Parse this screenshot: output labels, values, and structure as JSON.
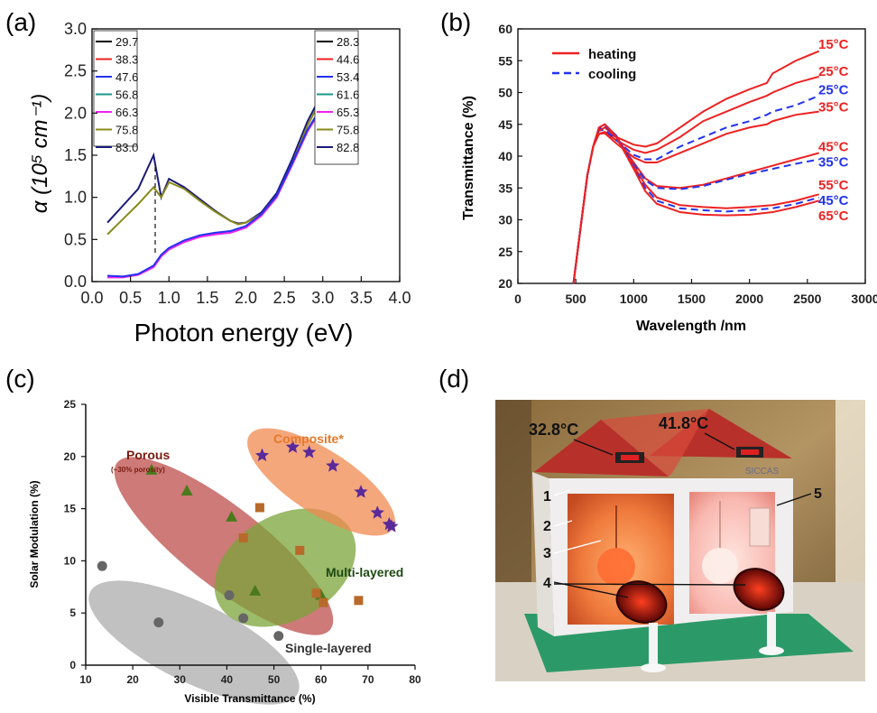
{
  "panels": [
    {
      "id": "a",
      "label": "(a)"
    },
    {
      "id": "b",
      "label": "(b)"
    },
    {
      "id": "c",
      "label": "(c)"
    },
    {
      "id": "d",
      "label": "(d)"
    }
  ],
  "chart_data": [
    {
      "panel": "(a)",
      "type": "line",
      "xlabel": "Photon energy (eV)",
      "ylabel": "α (10⁵ cm⁻¹)",
      "xlim": [
        0.0,
        4.0
      ],
      "ylim": [
        0.0,
        3.0
      ],
      "xticks": [
        "0.0",
        "0.5",
        "1.0",
        "1.5",
        "2.0",
        "2.5",
        "3.0",
        "3.5",
        "4.0"
      ],
      "yticks": [
        "0.0",
        "0.5",
        "1.0",
        "1.5",
        "2.0",
        "2.5",
        "3.0"
      ],
      "legend_left": {
        "placement": "top-left",
        "entries": [
          {
            "label": "29.7",
            "color": "#000000"
          },
          {
            "label": "38.3",
            "color": "#ee2222"
          },
          {
            "label": "47.6",
            "color": "#2233ee"
          },
          {
            "label": "56.8",
            "color": "#1a9a8a"
          },
          {
            "label": "66.3",
            "color": "#ee22ee"
          },
          {
            "label": "75.8",
            "color": "#8a8a1a"
          },
          {
            "label": "83.0",
            "color": "#1a1a7a"
          }
        ]
      },
      "legend_right": {
        "placement": "top-right",
        "entries": [
          {
            "label": "28.3",
            "color": "#000000"
          },
          {
            "label": "44.6",
            "color": "#ee2222"
          },
          {
            "label": "53.4",
            "color": "#2233ee"
          },
          {
            "label": "61.6",
            "color": "#1a9a8a"
          },
          {
            "label": "65.3",
            "color": "#ee22ee"
          },
          {
            "label": "75.8",
            "color": "#8a8a1a"
          },
          {
            "label": "82.8",
            "color": "#1a1a7a"
          }
        ]
      },
      "series": [
        {
          "color": "#1a1a7a",
          "x": [
            0.2,
            0.4,
            0.6,
            0.8,
            0.9,
            1.0,
            1.2,
            1.4,
            1.6,
            1.8,
            1.9,
            2.0,
            2.2,
            2.4,
            2.6,
            2.8,
            3.0,
            3.1
          ],
          "y": [
            0.7,
            0.9,
            1.1,
            1.5,
            1.0,
            1.22,
            1.12,
            0.98,
            0.84,
            0.72,
            0.69,
            0.7,
            0.82,
            1.05,
            1.45,
            1.9,
            2.25,
            2.35
          ]
        },
        {
          "color": "#8a8a1a",
          "x": [
            0.2,
            0.4,
            0.6,
            0.8,
            0.9,
            1.0,
            1.2,
            1.4,
            1.6,
            1.8,
            1.9,
            2.0,
            2.2,
            2.4,
            2.6,
            2.8,
            3.0,
            3.1
          ],
          "y": [
            0.56,
            0.74,
            0.92,
            1.12,
            1.0,
            1.18,
            1.1,
            0.96,
            0.83,
            0.72,
            0.68,
            0.7,
            0.8,
            1.02,
            1.4,
            1.85,
            2.2,
            2.3
          ]
        },
        {
          "color": "#ee22ee",
          "x": [
            0.2,
            0.4,
            0.6,
            0.8,
            0.9,
            1.0,
            1.2,
            1.4,
            1.6,
            1.8,
            2.0,
            2.2,
            2.4,
            2.6,
            2.8,
            3.0,
            3.1
          ],
          "y": [
            0.05,
            0.05,
            0.08,
            0.17,
            0.3,
            0.38,
            0.47,
            0.53,
            0.56,
            0.58,
            0.64,
            0.78,
            1.0,
            1.38,
            1.78,
            2.08,
            2.15
          ]
        },
        {
          "color": "#2233ee",
          "x": [
            0.2,
            0.4,
            0.6,
            0.8,
            0.9,
            1.0,
            1.2,
            1.4,
            1.6,
            1.8,
            2.0,
            2.2,
            2.4,
            2.6,
            2.8,
            3.0,
            3.1
          ],
          "y": [
            0.07,
            0.06,
            0.09,
            0.19,
            0.32,
            0.4,
            0.49,
            0.55,
            0.58,
            0.6,
            0.66,
            0.8,
            1.02,
            1.4,
            1.8,
            2.1,
            2.18
          ]
        }
      ]
    },
    {
      "panel": "(b)",
      "type": "line",
      "xlabel": "Wavelength /nm",
      "ylabel": "Transmittance (%)",
      "xlim": [
        0,
        3000
      ],
      "ylim": [
        20,
        60
      ],
      "xticks": [
        "0",
        "500",
        "1000",
        "1500",
        "2000",
        "2500",
        "3000"
      ],
      "yticks": [
        "20",
        "25",
        "30",
        "35",
        "40",
        "45",
        "50",
        "55",
        "60"
      ],
      "legend": {
        "placement": "top-left",
        "entries": [
          {
            "label": "heating",
            "color": "#ee2222",
            "style": "solid"
          },
          {
            "label": "cooling",
            "color": "#2233ee",
            "style": "dashed"
          }
        ]
      },
      "annotations": [
        {
          "text": "15°C",
          "color": "#ee2222",
          "y": 57.7
        },
        {
          "text": "25°C",
          "color": "#ee2222",
          "y": 53.5
        },
        {
          "text": "25°C",
          "color": "#2233ee",
          "y": 50.6
        },
        {
          "text": "35°C",
          "color": "#ee2222",
          "y": 47.9
        },
        {
          "text": "45°C",
          "color": "#ee2222",
          "y": 41.6
        },
        {
          "text": "35°C",
          "color": "#2233ee",
          "y": 39.2
        },
        {
          "text": "55°C",
          "color": "#ee2222",
          "y": 35.6
        },
        {
          "text": "45°C",
          "color": "#2233ee",
          "y": 33.2
        },
        {
          "text": "65°C",
          "color": "#ee2222",
          "y": 30.8
        }
      ],
      "series": [
        {
          "name": "heating",
          "temp": "15°C",
          "style": "solid",
          "color": "#ee2222",
          "x": [
            480,
            550,
            600,
            650,
            700,
            750,
            850,
            1000,
            1100,
            1200,
            1400,
            1600,
            1800,
            2000,
            2150,
            2200,
            2400,
            2600
          ],
          "y": [
            20,
            30,
            37,
            41.5,
            43.5,
            43.8,
            43,
            41.8,
            41.5,
            42,
            44.5,
            47,
            49,
            50.5,
            51.5,
            53,
            55,
            56.5
          ]
        },
        {
          "name": "heating",
          "temp": "25°C",
          "style": "solid",
          "color": "#ee2222",
          "x": [
            480,
            550,
            600,
            650,
            700,
            750,
            850,
            1000,
            1100,
            1200,
            1400,
            1600,
            1800,
            2000,
            2150,
            2200,
            2400,
            2600
          ],
          "y": [
            20,
            30,
            37,
            41.5,
            43.5,
            43.8,
            42.5,
            41,
            40.5,
            41,
            43,
            45.5,
            47,
            48.5,
            49.5,
            50,
            51.5,
            52.5
          ]
        },
        {
          "name": "cooling",
          "temp": "25°C",
          "style": "dashed",
          "color": "#2233ee",
          "x": [
            480,
            550,
            600,
            650,
            700,
            750,
            850,
            1000,
            1100,
            1200,
            1400,
            1600,
            1800,
            2000,
            2150,
            2200,
            2400,
            2600
          ],
          "y": [
            20,
            30,
            37,
            41.5,
            44,
            44.2,
            42.5,
            40.2,
            39.5,
            39.5,
            41.5,
            43,
            44.5,
            45.5,
            46.5,
            47,
            48,
            49.5
          ]
        },
        {
          "name": "heating",
          "temp": "35°C",
          "style": "solid",
          "color": "#ee2222",
          "x": [
            480,
            550,
            600,
            650,
            700,
            750,
            850,
            1000,
            1100,
            1200,
            1400,
            1600,
            1800,
            2000,
            2150,
            2200,
            2400,
            2600
          ],
          "y": [
            20,
            30,
            37,
            41.5,
            43.5,
            43.6,
            42,
            39.8,
            39,
            39,
            40.5,
            42,
            43.5,
            44.5,
            45,
            45.5,
            46.5,
            47
          ]
        },
        {
          "name": "heating",
          "temp": "45°C",
          "style": "solid",
          "color": "#ee2222",
          "x": [
            480,
            550,
            600,
            650,
            700,
            750,
            850,
            1000,
            1100,
            1200,
            1400,
            1600,
            1800,
            2000,
            2200,
            2400,
            2600
          ],
          "y": [
            20,
            30,
            37,
            41.5,
            44,
            44.5,
            43,
            39,
            36.5,
            35.3,
            35,
            35.5,
            36.5,
            37.5,
            38.5,
            39.5,
            40.5
          ]
        },
        {
          "name": "cooling",
          "temp": "35°C",
          "style": "dashed",
          "color": "#2233ee",
          "x": [
            480,
            550,
            600,
            650,
            700,
            750,
            850,
            1000,
            1100,
            1200,
            1400,
            1600,
            1800,
            2000,
            2200,
            2400,
            2600
          ],
          "y": [
            20,
            30,
            37,
            41.5,
            44.3,
            44.8,
            43,
            38.8,
            36.2,
            35,
            34.8,
            35.3,
            36.3,
            37.2,
            38,
            38.8,
            39.5
          ]
        },
        {
          "name": "heating",
          "temp": "55°C",
          "style": "solid",
          "color": "#ee2222",
          "x": [
            480,
            550,
            600,
            650,
            700,
            750,
            850,
            1000,
            1100,
            1200,
            1400,
            1600,
            1800,
            2000,
            2200,
            2400,
            2600
          ],
          "y": [
            20,
            30,
            37,
            41.5,
            44.5,
            45,
            43.2,
            38.5,
            35.5,
            33.5,
            32.3,
            32,
            31.8,
            32,
            32.3,
            33,
            34
          ]
        },
        {
          "name": "cooling",
          "temp": "45°C",
          "style": "dashed",
          "color": "#2233ee",
          "x": [
            480,
            550,
            600,
            650,
            700,
            750,
            850,
            1000,
            1100,
            1200,
            1400,
            1600,
            1800,
            2000,
            2200,
            2400,
            2600
          ],
          "y": [
            20,
            30,
            37,
            41.5,
            44.5,
            45,
            43.2,
            38.2,
            35,
            33,
            31.8,
            31.5,
            31.3,
            31.5,
            31.8,
            32.5,
            33.5
          ]
        },
        {
          "name": "heating",
          "temp": "65°C",
          "style": "solid",
          "color": "#ee2222",
          "x": [
            480,
            550,
            600,
            650,
            700,
            750,
            850,
            1000,
            1100,
            1200,
            1400,
            1600,
            1800,
            2000,
            2200,
            2400,
            2600
          ],
          "y": [
            20,
            30,
            37,
            41.5,
            44.5,
            45,
            43,
            38,
            34.5,
            32.5,
            31.2,
            30.8,
            30.7,
            30.8,
            31.2,
            32,
            33
          ]
        }
      ]
    },
    {
      "panel": "(c)",
      "type": "scatter",
      "xlabel": "Visible Transmittance (%)",
      "ylabel": "Solar Modulation (%)",
      "xlim": [
        10,
        80
      ],
      "ylim": [
        0,
        25
      ],
      "xticks": [
        "10",
        "20",
        "30",
        "40",
        "50",
        "60",
        "70",
        "80"
      ],
      "yticks": [
        "0",
        "5",
        "10",
        "15",
        "20",
        "25"
      ],
      "groups": [
        {
          "label": "Single-layered",
          "color": "#8a8a8a",
          "fill": "#b0b0b0",
          "marker": "circle",
          "points": [
            [
              13.5,
              9.5
            ],
            [
              25.5,
              4.1
            ],
            [
              40.5,
              6.7
            ],
            [
              43.5,
              4.5
            ],
            [
              51,
              2.8
            ]
          ]
        },
        {
          "label": "Porous",
          "sublabel": "(~30% porosity)",
          "color": "#7a1a10",
          "fill": "#c45a5a",
          "marker": "triangle",
          "points": [
            [
              24,
              18.7
            ],
            [
              31.5,
              16.7
            ],
            [
              41,
              14.2
            ],
            [
              46,
              7.1
            ],
            [
              60,
              6.7
            ]
          ]
        },
        {
          "label": "Multi-layered",
          "color": "#1e4a12",
          "fill": "#7cb04a",
          "marker": "square",
          "points": [
            [
              43.5,
              12.2
            ],
            [
              47,
              15.1
            ],
            [
              55.5,
              11
            ],
            [
              59,
              6.9
            ],
            [
              60.5,
              6
            ],
            [
              68,
              6.2
            ]
          ]
        },
        {
          "label": "Composite*",
          "color": "#e8782a",
          "fill": "#f3a878",
          "marker": "star",
          "points": [
            [
              47.5,
              20.1
            ],
            [
              54,
              20.9
            ],
            [
              57.5,
              20.4
            ],
            [
              62.5,
              19.1
            ],
            [
              68.5,
              16.6
            ],
            [
              72,
              14.6
            ],
            [
              74.5,
              13.5
            ],
            [
              75,
              13.3
            ]
          ]
        }
      ]
    }
  ],
  "photo": {
    "panel": "(d)",
    "readouts": [
      "32.8°C",
      "41.8°C"
    ],
    "numbers": [
      "1",
      "2",
      "3",
      "4",
      "5"
    ],
    "logo_text": "SICCAS"
  }
}
